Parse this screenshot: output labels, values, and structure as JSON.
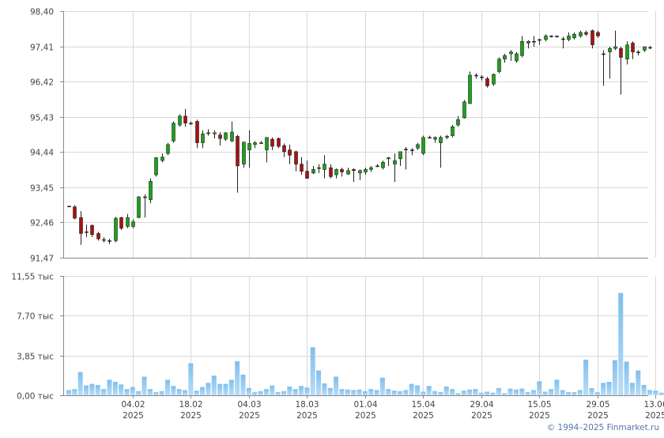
{
  "credit": "© 1994–2025 Finmarket.ru",
  "colors": {
    "up_fill": "#1aa31a",
    "down_fill": "#aa1111",
    "wick": "#222222",
    "grid": "#d8d8d8",
    "axis": "#888888",
    "volume_bar": "#7fbfee",
    "volume_bar_light": "#b9dcf6"
  },
  "chart_data": [
    {
      "type": "candlestick",
      "ylim": [
        91.47,
        98.4
      ],
      "yticks": [
        91.47,
        92.46,
        93.45,
        94.44,
        95.43,
        96.42,
        97.41,
        98.4
      ],
      "ytick_labels": [
        "91,47",
        "92,46",
        "93,45",
        "94,44",
        "95,43",
        "96,42",
        "97,41",
        "98,40"
      ],
      "x_tick_labels": [
        {
          "index": 11,
          "line1": "04.02",
          "line2": "2025"
        },
        {
          "index": 21,
          "line1": "18.02",
          "line2": "2025"
        },
        {
          "index": 31,
          "line1": "04.03",
          "line2": "2025"
        },
        {
          "index": 41,
          "line1": "18.03",
          "line2": "2025"
        },
        {
          "index": 51,
          "line1": "01.04",
          "line2": "2025"
        },
        {
          "index": 61,
          "line1": "15.04",
          "line2": "2025"
        },
        {
          "index": 71,
          "line1": "29.04",
          "line2": "2025"
        },
        {
          "index": 81,
          "line1": "15.05",
          "line2": "2025"
        },
        {
          "index": 91,
          "line1": "29.05",
          "line2": "2025"
        },
        {
          "index": 101,
          "line1": "13.06",
          "line2": "2025"
        }
      ],
      "ohlc": [
        [
          92.92,
          92.92,
          92.92,
          92.92
        ],
        [
          92.9,
          92.95,
          92.55,
          92.58
        ],
        [
          92.6,
          92.78,
          91.83,
          92.15
        ],
        [
          92.2,
          92.4,
          92.05,
          92.2
        ],
        [
          92.38,
          92.4,
          92.05,
          92.12
        ],
        [
          92.15,
          92.2,
          91.95,
          92.0
        ],
        [
          91.98,
          92.05,
          91.9,
          91.98
        ],
        [
          91.95,
          92.0,
          91.85,
          91.93
        ],
        [
          91.95,
          92.62,
          91.9,
          92.58
        ],
        [
          92.6,
          92.62,
          92.25,
          92.3
        ],
        [
          92.35,
          92.7,
          92.3,
          92.6
        ],
        [
          92.35,
          92.55,
          92.3,
          92.48
        ],
        [
          92.6,
          93.2,
          92.58,
          93.18
        ],
        [
          93.18,
          93.25,
          92.6,
          93.18
        ],
        [
          93.1,
          93.7,
          93.0,
          93.62
        ],
        [
          93.8,
          94.3,
          93.75,
          94.28
        ],
        [
          94.2,
          94.4,
          94.15,
          94.3
        ],
        [
          94.4,
          94.7,
          94.35,
          94.65
        ],
        [
          94.75,
          95.3,
          94.7,
          95.25
        ],
        [
          95.2,
          95.5,
          95.15,
          95.45
        ],
        [
          95.45,
          95.65,
          95.15,
          95.25
        ],
        [
          95.25,
          95.3,
          95.2,
          95.25
        ],
        [
          95.3,
          95.35,
          94.55,
          94.7
        ],
        [
          94.7,
          95.05,
          94.55,
          94.95
        ],
        [
          94.98,
          95.08,
          94.9,
          94.98
        ],
        [
          94.95,
          95.05,
          94.82,
          94.98
        ],
        [
          94.92,
          95.0,
          94.62,
          94.82
        ],
        [
          94.8,
          95.0,
          94.75,
          94.98
        ],
        [
          94.75,
          95.3,
          94.72,
          95.0
        ],
        [
          94.88,
          94.92,
          93.3,
          94.05
        ],
        [
          94.1,
          94.7,
          94.0,
          94.72
        ],
        [
          94.5,
          95.05,
          94.0,
          94.68
        ],
        [
          94.65,
          94.75,
          94.55,
          94.7
        ],
        [
          94.7,
          94.75,
          94.7,
          94.7
        ],
        [
          94.5,
          94.85,
          94.15,
          94.85
        ],
        [
          94.8,
          94.85,
          94.5,
          94.6
        ],
        [
          94.82,
          94.85,
          94.55,
          94.6
        ],
        [
          94.62,
          94.68,
          94.3,
          94.45
        ],
        [
          94.5,
          94.65,
          94.1,
          94.35
        ],
        [
          94.45,
          94.48,
          93.9,
          94.1
        ],
        [
          94.1,
          94.3,
          93.8,
          93.9
        ],
        [
          93.9,
          94.2,
          93.7,
          93.7
        ],
        [
          93.85,
          94.05,
          93.82,
          93.95
        ],
        [
          94.0,
          94.1,
          93.85,
          94.0
        ],
        [
          93.95,
          94.35,
          93.7,
          94.1
        ],
        [
          94.0,
          94.1,
          93.7,
          93.75
        ],
        [
          93.8,
          93.98,
          93.7,
          93.95
        ],
        [
          93.95,
          94.0,
          93.75,
          93.88
        ],
        [
          93.82,
          94.0,
          93.8,
          93.92
        ],
        [
          93.95,
          93.98,
          93.6,
          93.92
        ],
        [
          93.85,
          93.95,
          93.65,
          93.92
        ],
        [
          93.88,
          94.0,
          93.8,
          93.95
        ],
        [
          93.95,
          94.05,
          93.88,
          94.0
        ],
        [
          94.05,
          94.1,
          94.02,
          94.05
        ],
        [
          94.0,
          94.2,
          93.95,
          94.15
        ],
        [
          94.25,
          94.3,
          94.05,
          94.28
        ],
        [
          94.1,
          94.4,
          93.6,
          94.2
        ],
        [
          94.25,
          94.45,
          94.05,
          94.45
        ],
        [
          94.5,
          94.58,
          93.95,
          94.52
        ],
        [
          94.5,
          94.55,
          94.35,
          94.5
        ],
        [
          94.55,
          94.7,
          94.5,
          94.65
        ],
        [
          94.4,
          94.9,
          94.35,
          94.85
        ],
        [
          94.85,
          94.9,
          94.82,
          94.85
        ],
        [
          94.8,
          94.88,
          94.7,
          94.85
        ],
        [
          94.7,
          94.9,
          94.0,
          94.85
        ],
        [
          94.85,
          94.92,
          94.8,
          94.88
        ],
        [
          94.9,
          95.2,
          94.85,
          95.15
        ],
        [
          95.2,
          95.45,
          95.15,
          95.35
        ],
        [
          95.4,
          95.9,
          95.38,
          95.85
        ],
        [
          95.8,
          96.7,
          95.8,
          96.6
        ],
        [
          96.6,
          96.65,
          96.5,
          96.58
        ],
        [
          96.55,
          96.6,
          96.45,
          96.55
        ],
        [
          96.5,
          96.55,
          96.25,
          96.3
        ],
        [
          96.35,
          96.65,
          96.3,
          96.62
        ],
        [
          96.7,
          97.1,
          96.65,
          97.05
        ],
        [
          97.05,
          97.2,
          96.95,
          97.15
        ],
        [
          97.2,
          97.3,
          97.0,
          97.25
        ],
        [
          97.0,
          97.25,
          96.95,
          97.2
        ],
        [
          97.15,
          97.7,
          97.1,
          97.55
        ],
        [
          97.5,
          97.58,
          97.35,
          97.55
        ],
        [
          97.55,
          97.7,
          97.4,
          97.55
        ],
        [
          97.58,
          97.62,
          97.45,
          97.6
        ],
        [
          97.6,
          97.75,
          97.55,
          97.7
        ],
        [
          97.7,
          97.72,
          97.66,
          97.7
        ],
        [
          97.68,
          97.7,
          97.65,
          97.7
        ],
        [
          97.62,
          97.68,
          97.35,
          97.62
        ],
        [
          97.6,
          97.8,
          97.55,
          97.7
        ],
        [
          97.65,
          97.8,
          97.6,
          97.75
        ],
        [
          97.7,
          97.85,
          97.65,
          97.8
        ],
        [
          97.8,
          97.85,
          97.7,
          97.75
        ],
        [
          97.85,
          97.88,
          97.35,
          97.45
        ],
        [
          97.8,
          97.85,
          97.65,
          97.7
        ],
        [
          97.2,
          97.3,
          96.3,
          97.2
        ],
        [
          97.25,
          97.4,
          96.5,
          97.35
        ],
        [
          97.35,
          97.85,
          97.3,
          97.4
        ],
        [
          97.35,
          97.4,
          96.05,
          97.1
        ],
        [
          97.05,
          97.55,
          96.9,
          97.45
        ],
        [
          97.5,
          97.55,
          97.05,
          97.25
        ],
        [
          97.25,
          97.3,
          97.15,
          97.25
        ],
        [
          97.3,
          97.4,
          97.25,
          97.4
        ],
        [
          97.38,
          97.42,
          97.33,
          97.38
        ]
      ]
    },
    {
      "type": "bar",
      "title": "",
      "ylim": [
        0,
        11.55
      ],
      "yticks": [
        0,
        3.85,
        7.7,
        11.55
      ],
      "ytick_labels": [
        "0,00 тыс",
        "3,85 тыс",
        "7,70 тыс",
        "11,55 тыс"
      ],
      "values": [
        0.5,
        0.6,
        2.25,
        0.95,
        1.1,
        1.0,
        0.6,
        1.5,
        1.3,
        1.05,
        0.6,
        0.8,
        0.4,
        1.8,
        0.6,
        0.3,
        0.4,
        1.5,
        0.9,
        0.6,
        0.5,
        3.1,
        0.45,
        0.8,
        1.2,
        1.9,
        1.1,
        1.1,
        1.5,
        3.3,
        2.0,
        0.7,
        0.3,
        0.4,
        0.6,
        0.95,
        0.3,
        0.4,
        0.85,
        0.6,
        0.9,
        0.75,
        4.65,
        2.4,
        1.15,
        0.7,
        1.8,
        0.6,
        0.55,
        0.5,
        0.55,
        0.4,
        0.6,
        0.5,
        1.7,
        0.6,
        0.45,
        0.4,
        0.5,
        1.1,
        0.95,
        0.35,
        0.9,
        0.4,
        0.3,
        0.85,
        0.6,
        0.2,
        0.45,
        0.55,
        0.6,
        0.25,
        0.35,
        0.25,
        0.7,
        0.2,
        0.65,
        0.55,
        0.65,
        0.3,
        0.5,
        1.35,
        0.35,
        0.6,
        1.5,
        0.5,
        0.3,
        0.3,
        0.5,
        3.45,
        0.7,
        0.3,
        1.2,
        1.3,
        3.4,
        9.9,
        3.25,
        1.2,
        2.4,
        1.0,
        0.5,
        0.45,
        0.25
      ]
    }
  ]
}
